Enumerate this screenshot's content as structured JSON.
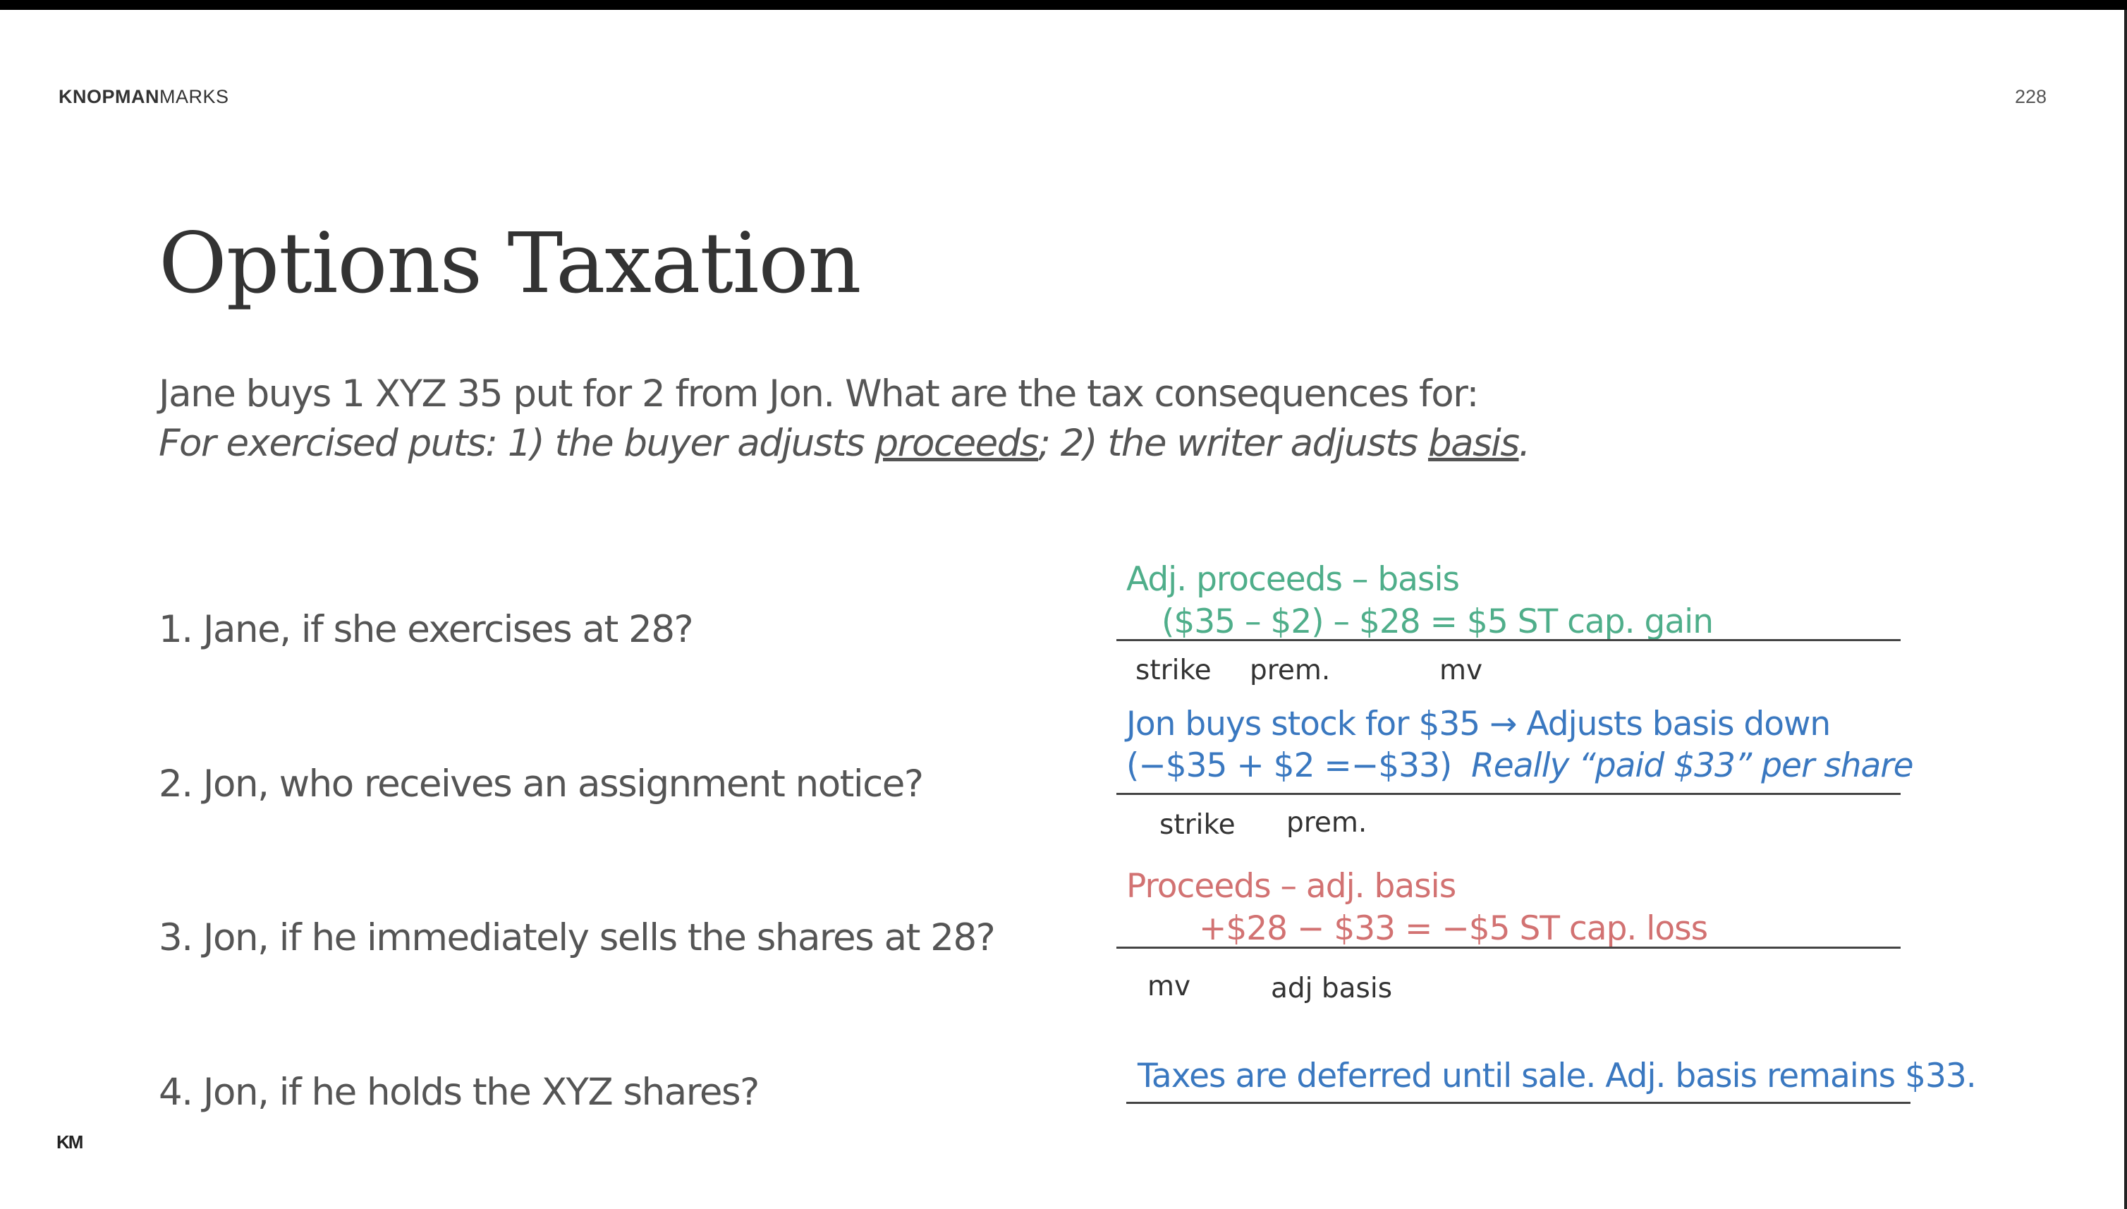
{
  "header": {
    "brand_bold": "KNOPMAN",
    "brand_regular": "MARKS",
    "page_number": "228"
  },
  "title": "Options Taxation",
  "intro": {
    "line1": "Jane buys 1 XYZ 35 put for 2 from Jon. What are the tax consequences for:",
    "line2_a": "For exercised puts: 1) the buyer adjusts ",
    "line2_u1": "proceeds",
    "line2_b": "; 2) the writer adjusts ",
    "line2_u2": "basis",
    "line2_c": "."
  },
  "questions": [
    "1. Jane, if she exercises at 28?",
    "2. Jon, who receives an assignment notice?",
    "3. Jon, if he immediately sells the shares at 28?",
    "4. Jon, if he holds the XYZ shares?"
  ],
  "answers": {
    "a1": {
      "line1": "Adj. proceeds  – basis",
      "line2": "($35 – $2)      – $28 = $5 ST cap. gain",
      "labels": [
        "strike",
        "prem.",
        "mv"
      ]
    },
    "a2": {
      "line1": "Jon buys stock for $35 → Adjusts basis down",
      "line2_a": "(−$35 + $2 =−$33)",
      "line2_b": "Really “paid $33” per share",
      "labels": [
        "strike",
        "prem."
      ]
    },
    "a3": {
      "line1": "Proceeds – adj. basis",
      "line2": "+$28 − $33 = −$5 ST cap. loss",
      "labels": [
        "mv",
        "adj basis"
      ]
    },
    "a4": {
      "line1": "Taxes are deferred until sale. Adj. basis remains $33."
    }
  },
  "footer": {
    "logo_text": "KM"
  },
  "colors": {
    "answer1": "#4fae8a",
    "answer2": "#3a78c0",
    "answer3": "#d27272",
    "answer4": "#3a78c0",
    "text_gray": "#555555"
  }
}
